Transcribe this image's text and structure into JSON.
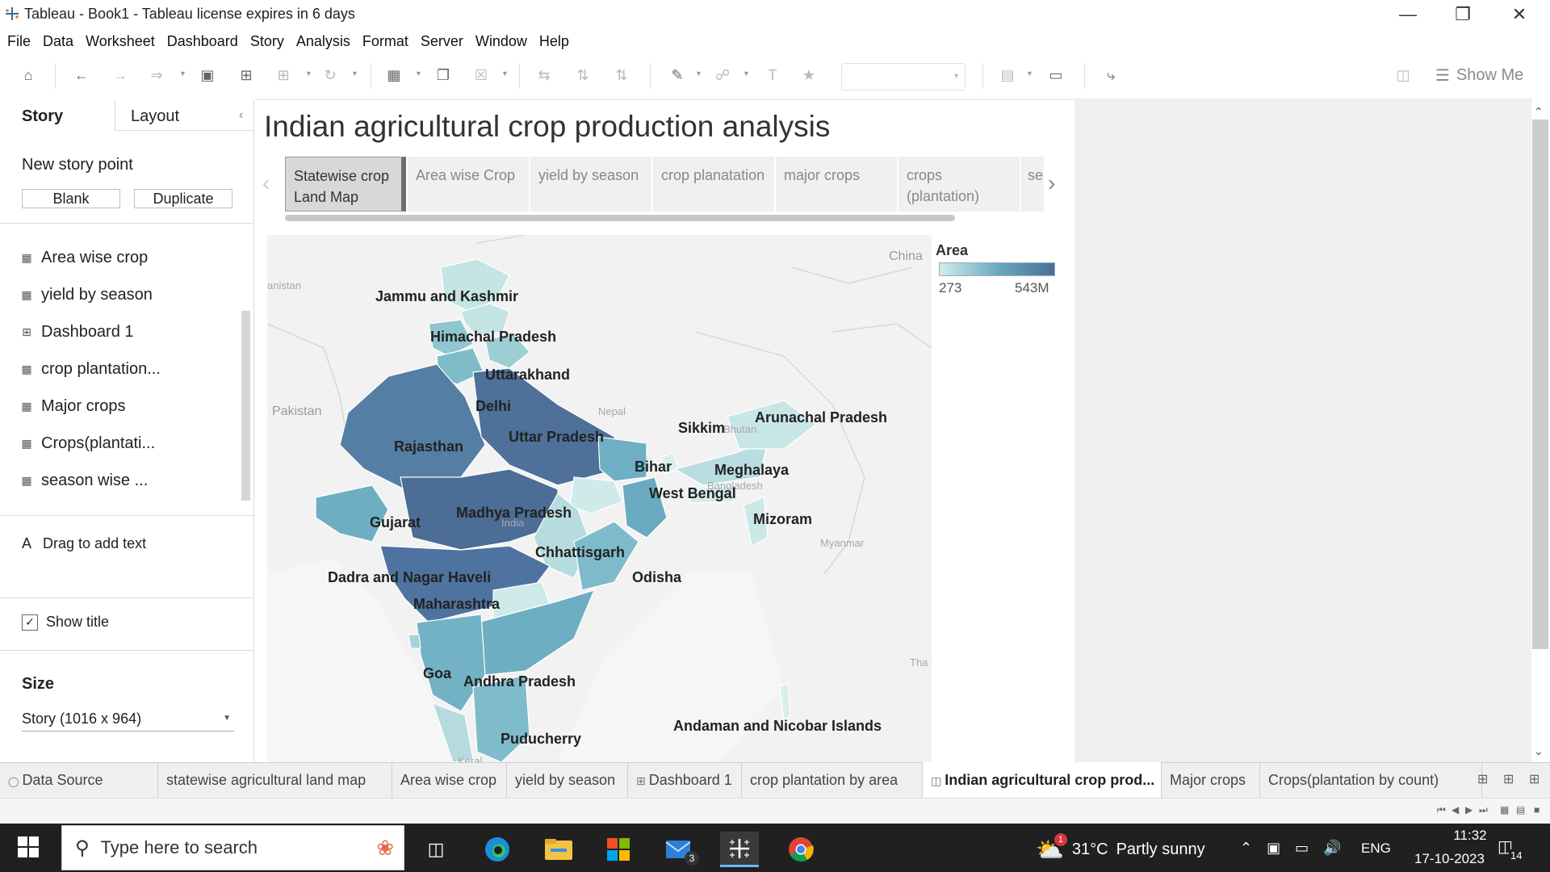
{
  "window": {
    "title": "Tableau - Book1 - Tableau license expires in 6 days"
  },
  "menu": [
    "File",
    "Data",
    "Worksheet",
    "Dashboard",
    "Story",
    "Analysis",
    "Format",
    "Server",
    "Window",
    "Help"
  ],
  "toolbar": {
    "show_me_label": "Show Me"
  },
  "left_pane": {
    "tab_story": "Story",
    "tab_layout": "Layout",
    "new_story_point_label": "New story point",
    "blank_button": "Blank",
    "duplicate_button": "Duplicate",
    "sheets": [
      {
        "label": "Area wise crop",
        "icon": "worksheet-icon"
      },
      {
        "label": "yield by season",
        "icon": "worksheet-icon"
      },
      {
        "label": "Dashboard 1",
        "icon": "dashboard-icon"
      },
      {
        "label": "crop plantation...",
        "icon": "worksheet-icon"
      },
      {
        "label": "Major crops",
        "icon": "worksheet-icon"
      },
      {
        "label": "Crops(plantati...",
        "icon": "worksheet-icon"
      },
      {
        "label": "season wise ...",
        "icon": "worksheet-icon"
      }
    ],
    "drag_text_icon": "A",
    "drag_text_label": "Drag to add text",
    "show_title_label": "Show title",
    "show_title_checked": true,
    "size_label": "Size",
    "size_value": "Story (1016 x 964)"
  },
  "story": {
    "title": "Indian agricultural crop production analysis",
    "points": [
      {
        "label": "Statewise crop Land Map",
        "active": true
      },
      {
        "label": "Area wise Crop",
        "active": false
      },
      {
        "label": "yield by season",
        "active": false
      },
      {
        "label": "crop planatation",
        "active": false
      },
      {
        "label": "major crops",
        "active": false
      },
      {
        "label": "crops (plantation)",
        "active": false
      },
      {
        "label": "se",
        "active": false
      }
    ]
  },
  "map": {
    "state_labels": [
      "Jammu and Kashmir",
      "Himachal Pradesh",
      "Uttarakhand",
      "Delhi",
      "Uttar Pradesh",
      "Rajasthan",
      "Sikkim",
      "Arunachal Pradesh",
      "Bihar",
      "Meghalaya",
      "West Bengal",
      "Gujarat",
      "Madhya Pradesh",
      "Mizoram",
      "Chhattisgarh",
      "Dadra and Nagar Haveli",
      "Odisha",
      "Maharashtra",
      "Goa",
      "Andhra Pradesh",
      "Puducherry",
      "Andaman and Nicobar Islands"
    ],
    "geo_labels": [
      "China",
      "Pakistan",
      "Nepal",
      "Myanmar",
      "India"
    ],
    "geo_small_labels": [
      "anistan",
      "Bhutan",
      "Bangladesh",
      "Tha",
      "Keral"
    ],
    "colors": {
      "low": "#d3ebeb",
      "mid": "#6aabbf",
      "high": "#4a6e98",
      "background": "#f2f2f2"
    }
  },
  "legend": {
    "title": "Area",
    "min": "273",
    "max": "543M"
  },
  "sheet_tabs": [
    {
      "label": "Data Source",
      "icon": "datasource-icon",
      "active": false
    },
    {
      "label": "statewise agricultural land map",
      "active": false
    },
    {
      "label": "Area wise crop",
      "active": false
    },
    {
      "label": "yield by season",
      "active": false
    },
    {
      "label": "Dashboard 1",
      "icon": "dashboard-icon",
      "active": false
    },
    {
      "label": "crop plantation by area",
      "active": false
    },
    {
      "label": "Indian agricultural crop prod...",
      "icon": "story-icon",
      "active": true
    },
    {
      "label": "Major crops",
      "active": false
    },
    {
      "label": "Crops(plantation by count)",
      "active": false
    }
  ],
  "taskbar": {
    "search_placeholder": "Type here to search",
    "mail_badge": "3",
    "weather_badge": "1",
    "weather_temp": "31°C",
    "weather_text": "Partly sunny",
    "language": "ENG",
    "time": "11:32",
    "date": "17-10-2023",
    "notifications": "14"
  }
}
